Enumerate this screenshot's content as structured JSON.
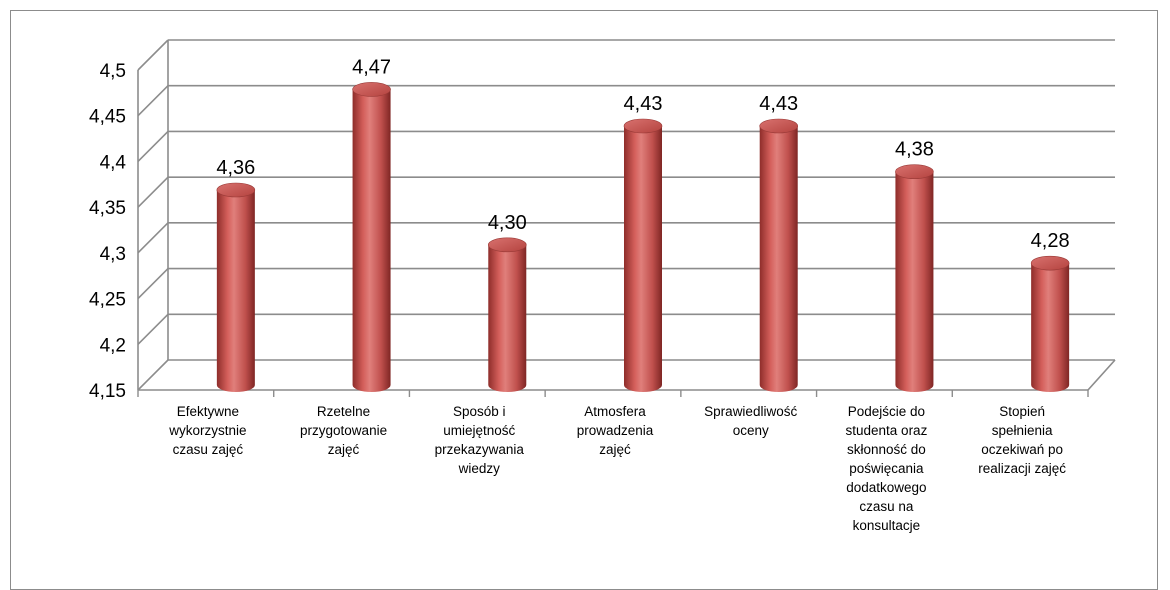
{
  "chart_data": {
    "type": "bar",
    "title": "",
    "xlabel": "",
    "ylabel": "",
    "categories": [
      "Efektywne wykorzystnie czasu zajęć",
      "Rzetelne przygotowanie zajęć",
      "Sposób i umiejętność przekazywania wiedzy",
      "Atmosfera prowadzenia zajęć",
      "Sprawiedliwość oceny",
      "Podejście do studenta oraz skłonność do poświęcania dodatkowego czasu na konsultacje",
      "Stopień spełnienia oczekiwań po realizacji zajęć"
    ],
    "category_lines": [
      [
        "Efektywne",
        "wykorzystnie",
        "czasu zajęć"
      ],
      [
        "Rzetelne",
        "przygotowanie",
        "zajęć"
      ],
      [
        "Sposób i",
        "umiejętność",
        "przekazywania",
        "wiedzy"
      ],
      [
        "Atmosfera",
        "prowadzenia",
        "zajęć"
      ],
      [
        "Sprawiedliwość",
        "oceny"
      ],
      [
        "Podejście do",
        "studenta oraz",
        "skłonność do",
        "poświęcania",
        "dodatkowego",
        "czasu na",
        "konsultacje"
      ],
      [
        "Stopień",
        "spełnienia",
        "oczekiwań po",
        "realizacji zajęć"
      ]
    ],
    "values": [
      4.36,
      4.47,
      4.3,
      4.43,
      4.43,
      4.38,
      4.28
    ],
    "data_labels": [
      "4,36",
      "4,47",
      "4,30",
      "4,43",
      "4,43",
      "4,38",
      "4,28"
    ],
    "y_ticks": [
      "4,15",
      "4,2",
      "4,25",
      "4,3",
      "4,35",
      "4,4",
      "4,45",
      "4,5"
    ],
    "ylim": [
      4.15,
      4.5
    ],
    "grid": true,
    "legend": "none",
    "bar_color": "#c0504d",
    "grid_color": "#8c8c8c"
  }
}
